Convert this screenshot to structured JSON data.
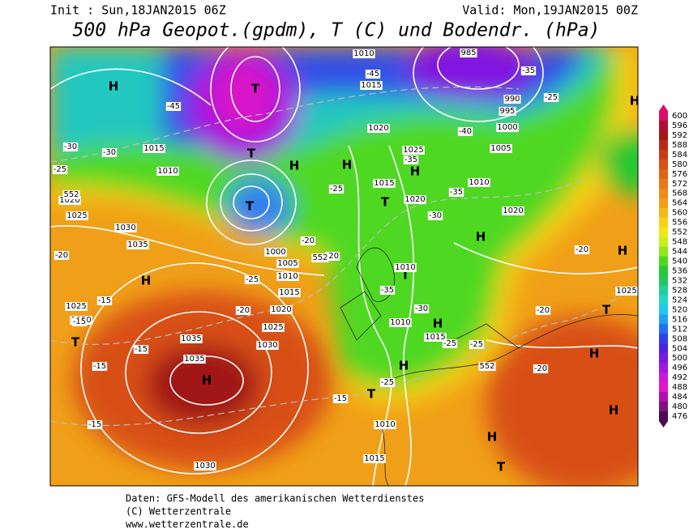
{
  "header": {
    "init": "Init : Sun,18JAN2015 06Z",
    "valid": "Valid: Mon,19JAN2015 00Z",
    "title": "500 hPa Geopot.(gpdm), T (C) und Bodendr. (hPa)"
  },
  "legend": {
    "levels": [
      600,
      596,
      592,
      588,
      584,
      580,
      576,
      572,
      568,
      564,
      560,
      556,
      552,
      548,
      544,
      540,
      536,
      532,
      528,
      524,
      520,
      516,
      512,
      508,
      504,
      500,
      496,
      492,
      488,
      484,
      480,
      476
    ],
    "colors": [
      "#d8106a",
      "#b01030",
      "#a01818",
      "#b82818",
      "#c83c18",
      "#d85018",
      "#e06418",
      "#e87818",
      "#f08c18",
      "#f0a018",
      "#f8b818",
      "#f8d018",
      "#f0e818",
      "#c8f018",
      "#90e818",
      "#50d820",
      "#28c830",
      "#20c860",
      "#20d098",
      "#20d8c8",
      "#20c8f0",
      "#20a0f0",
      "#2070f0",
      "#3040e8",
      "#5020e0",
      "#7818e0",
      "#a018e0",
      "#c818d8",
      "#e018c8",
      "#b010b0",
      "#801080",
      "#500850"
    ]
  },
  "map": {
    "labels": [
      "H",
      "H",
      "H",
      "T",
      "T",
      "T",
      "H",
      "H",
      "H",
      "T",
      "H",
      "T",
      "H",
      "H",
      "T",
      "H",
      "T",
      "H",
      "T",
      "H",
      "H",
      "T",
      "H",
      "1010",
      "1015",
      "1020",
      "1025",
      "1005",
      "1000",
      "995",
      "990",
      "985",
      "1015",
      "1010",
      "1035",
      "1030",
      "1025",
      "1020",
      "1035",
      "1035",
      "1030",
      "1025",
      "1020",
      "1015",
      "1010",
      "1005",
      "1000",
      "1010",
      "1015",
      "1010",
      "1015",
      "1030",
      "1025",
      "1020",
      "1025",
      "1020",
      "1010",
      "1015",
      "1020",
      "1010",
      "-45",
      "-45",
      "-35",
      "-25",
      "-40",
      "-35",
      "-25",
      "-35",
      "-30",
      "-20",
      "-20",
      "-20",
      "-25",
      "-25",
      "-25",
      "-30",
      "-35",
      "-20",
      "-20",
      "-20",
      "-25",
      "-15",
      "-15",
      "-15",
      "-15",
      "-15",
      "-20",
      "-25",
      "-30",
      "-30",
      "-15",
      "552",
      "552",
      "552"
    ]
  },
  "footer": {
    "lines": [
      "Daten: GFS-Modell des amerikanischen Wetterdienstes",
      "(C) Wetterzentrale",
      "www.wetterzentrale.de"
    ]
  }
}
